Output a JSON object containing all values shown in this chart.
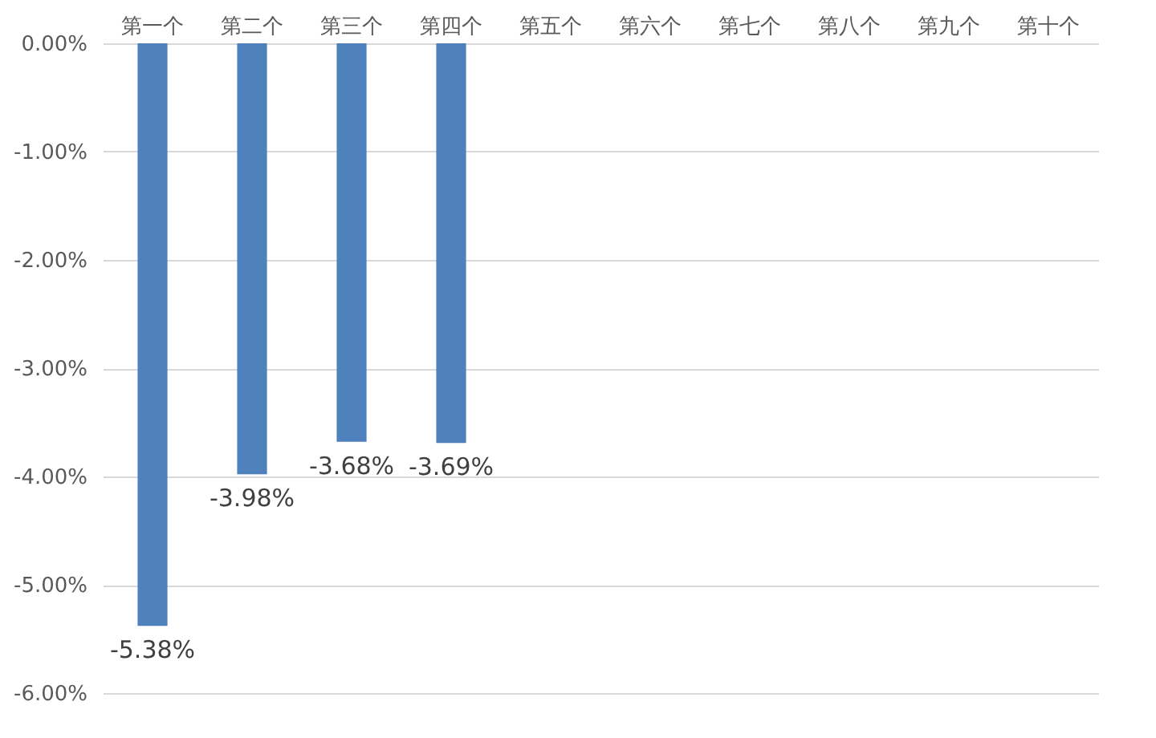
{
  "chart_data": {
    "type": "bar",
    "categories": [
      "第一个",
      "第二个",
      "第三个",
      "第四个",
      "第五个",
      "第六个",
      "第七个",
      "第八个",
      "第九个",
      "第十个"
    ],
    "values": [
      -5.38,
      -3.98,
      -3.68,
      -3.69,
      null,
      null,
      null,
      null,
      null,
      null
    ],
    "value_labels": [
      "-5.38%",
      "-3.98%",
      "-3.68%",
      "-3.69%",
      null,
      null,
      null,
      null,
      null,
      null
    ],
    "color": "#4f81bd",
    "ylim": [
      -6,
      0
    ],
    "yticks": [
      {
        "value": 0,
        "label": "0.00%"
      },
      {
        "value": -1,
        "label": "-1.00%"
      },
      {
        "value": -2,
        "label": "-2.00%"
      },
      {
        "value": -3,
        "label": "-3.00%"
      },
      {
        "value": -4,
        "label": "-4.00%"
      },
      {
        "value": -5,
        "label": "-5.00%"
      },
      {
        "value": -6,
        "label": "-6.00%"
      }
    ],
    "grid": "y"
  }
}
